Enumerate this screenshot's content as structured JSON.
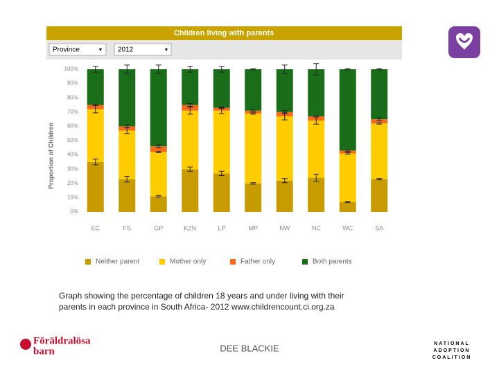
{
  "chart_data": {
    "type": "stacked_bar",
    "title": "Children living with parents",
    "controls": [
      "Province",
      "2012"
    ],
    "y_label": "Proportion of Children",
    "categories": [
      "EC",
      "FS",
      "GP",
      "KZN",
      "LP",
      "MP",
      "NW",
      "NC",
      "WC",
      "SA"
    ],
    "series": [
      {
        "name": "Neither parent",
        "color": "#c89b00",
        "values": [
          35,
          23,
          11,
          30,
          27,
          20,
          22,
          24,
          7,
          23
        ],
        "errors": [
          2,
          2,
          0.5,
          1.5,
          1.5,
          0.5,
          1.5,
          2.5,
          0.5,
          0.5
        ]
      },
      {
        "name": "Mother only",
        "color": "#ffcc00",
        "values": [
          37,
          34,
          31,
          41,
          44,
          49,
          45,
          40,
          34,
          39
        ],
        "errors": [
          2.5,
          2,
          0.5,
          2.5,
          2,
          0.5,
          2.5,
          2.5,
          0.5,
          0.5
        ]
      },
      {
        "name": "Father only",
        "color": "#f26c1b",
        "values": [
          3,
          3,
          4,
          4,
          2,
          2,
          3,
          3,
          2,
          3
        ],
        "errors": [
          0.5,
          1,
          1,
          1,
          0.5,
          0.5,
          1,
          0.5,
          0.5,
          1
        ]
      },
      {
        "name": "Both parents",
        "color": "#1a6e1a",
        "values": [
          25,
          40,
          54,
          25,
          27,
          29,
          30,
          33,
          57,
          35
        ],
        "errors": [
          2,
          3,
          3,
          2,
          2,
          0.5,
          3,
          4,
          0.5,
          0.5
        ]
      }
    ],
    "ylim": [
      0,
      100
    ],
    "yticks": [
      {
        "value": 0,
        "label": "0%"
      },
      {
        "value": 10,
        "label": "10%"
      },
      {
        "value": 20,
        "label": "20%"
      },
      {
        "value": 30,
        "label": "30%"
      },
      {
        "value": 40,
        "label": "40%"
      },
      {
        "value": 50,
        "label": "50%"
      },
      {
        "value": 60,
        "label": "60%"
      },
      {
        "value": 70,
        "label": "70%"
      },
      {
        "value": 80,
        "label": "80%"
      },
      {
        "value": 90,
        "label": "90%"
      },
      {
        "value": 100,
        "label": "100%"
      }
    ]
  },
  "slide": {
    "caption": [
      "Graph showing the percentage of children 18 years and under living with their",
      "parents in each province in South Africa- 2012 www.childrencount.ci.org.za"
    ],
    "footer": "DEE BLACKIE",
    "left_logo": [
      "Föräldralösa",
      "barn"
    ],
    "right_logo": [
      "NATIONAL",
      "ADOPTION",
      "COALITION"
    ]
  }
}
